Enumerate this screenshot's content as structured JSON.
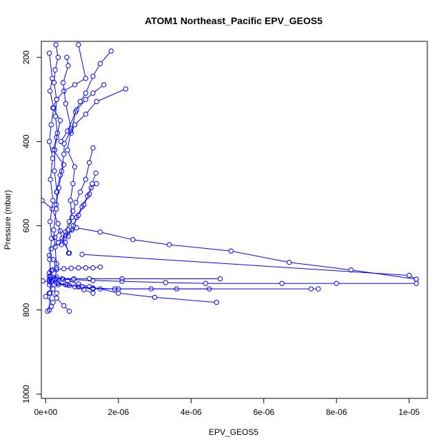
{
  "chart_data": {
    "type": "line",
    "title": "ATOM1 Northeast_Pacific EPV_GEOS5",
    "xlabel": "EPV_GEOS5",
    "ylabel": "Pressure (mbar)",
    "xlim": [
      -1.2e-07,
      1.05e-05
    ],
    "ylim": [
      1010,
      162
    ],
    "y_axis_reversed": true,
    "grid": false,
    "x_ticks": [
      {
        "value": 0,
        "label": "0e+00"
      },
      {
        "value": 2e-06,
        "label": "2e-06"
      },
      {
        "value": 4e-06,
        "label": "4e-06"
      },
      {
        "value": 6e-06,
        "label": "6e-06"
      },
      {
        "value": 8e-06,
        "label": "8e-06"
      },
      {
        "value": 1e-05,
        "label": "1e-05"
      }
    ],
    "y_ticks": [
      {
        "value": 200,
        "label": "200"
      },
      {
        "value": 400,
        "label": "400"
      },
      {
        "value": 600,
        "label": "600"
      },
      {
        "value": 800,
        "label": "800"
      },
      {
        "value": 1000,
        "label": "1000"
      }
    ],
    "colors": {
      "series": "#0000ff",
      "axis": "#000000"
    },
    "series": [
      {
        "x": [
          2.8e-07,
          3.4e-07,
          2.6e-07,
          2.3e-07,
          3e-07,
          2.7e-07,
          3.2e-07,
          2.5e-07,
          2.4e-07,
          3.1e-07,
          2.9e-07,
          2.2e-07,
          2.6e-07,
          3e-07,
          2.4e-07
        ],
        "y": [
          170,
          200,
          230,
          260,
          300,
          340,
          380,
          420,
          470,
          520,
          560,
          610,
          650,
          700,
          740
        ]
      },
      {
        "x": [
          1e-07,
          1.8e-07,
          1.2e-07,
          2.2e-07,
          1.5e-07,
          1e-07,
          1.9e-07,
          1.3e-07,
          2e-07,
          1.2e-07,
          1.6e-07,
          1.1e-07,
          1.4e-07,
          1.2e-07,
          1e-07
        ],
        "y": [
          190,
          250,
          280,
          320,
          360,
          400,
          440,
          490,
          540,
          590,
          630,
          680,
          720,
          760,
          800
        ]
      },
      {
        "x": [
          5.8e-07,
          6.2e-07,
          4.8e-07,
          5.5e-07,
          7e-07,
          6e-07,
          8e-07,
          7.5e-07,
          6.8e-07,
          7.2e-07,
          6.1e-07,
          5.4e-07,
          6.3e-07
        ],
        "y": [
          200,
          220,
          260,
          310,
          370,
          420,
          460,
          500,
          540,
          580,
          610,
          640,
          665
        ]
      },
      {
        "x": [
          2.2e-06,
          1.4e-06,
          1.1e-06,
          8e-07,
          6.8e-07,
          5.1e-07,
          5e-07,
          4.4e-07,
          3.6e-07,
          2.9e-07
        ],
        "y": [
          275,
          305,
          335,
          360,
          375,
          405,
          430,
          470,
          510,
          550
        ]
      },
      {
        "x": [
          1.8e-06,
          1.5e-06,
          1.3e-06,
          1.1e-06,
          9.5e-07,
          8.2e-07,
          7e-07
        ],
        "y": [
          185,
          215,
          245,
          285,
          305,
          330,
          380
        ]
      },
      {
        "x": [
          1.6e-06,
          1.3e-06,
          1.1e-06,
          8.5e-07,
          6e-07,
          4.2e-07
        ],
        "y": [
          265,
          285,
          300,
          325,
          375,
          400
        ]
      },
      {
        "x": [
          1.3e-06,
          1.2e-06,
          1.1e-06,
          9.5e-07,
          8.3e-07,
          7.5e-07,
          6.5e-07,
          5.4e-07,
          4.3e-07
        ],
        "y": [
          415,
          450,
          490,
          520,
          545,
          565,
          590,
          615,
          645
        ]
      },
      {
        "x": [
          1.38e-06,
          1.28e-06,
          1.2e-06,
          1.05e-06,
          9e-07,
          7.6e-07,
          6.2e-07
        ],
        "y": [
          475,
          500,
          525,
          550,
          575,
          600,
          625
        ]
      },
      {
        "x": [
          1.4e-06,
          1.25e-06,
          1.15e-06,
          1e-06,
          8.5e-07,
          7.2e-07
        ],
        "y": [
          500,
          510,
          530,
          555,
          580,
          610
        ]
      },
      {
        "x": [
          -1e-07,
          1.8e-07,
          3.4e-07,
          4.5e-07,
          6.5e-07
        ],
        "y": [
          540,
          560,
          595,
          630,
          665
        ]
      },
      {
        "x": [
          1e-06,
          1e-05,
          1.02e-05,
          8.4e-06,
          6.7e-06,
          5.1e-06,
          3.4e-06,
          2.4e-06,
          1.5e-06,
          8.5e-07,
          5.5e-07,
          3.5e-07
        ],
        "y": [
          668,
          718,
          727,
          705,
          687,
          660,
          645,
          633,
          615,
          605,
          622,
          640
        ]
      },
      {
        "x": [
          4.7e-06,
          3e-06,
          2e-06,
          1.5e-06,
          1.2e-06,
          9e-07,
          6e-07,
          3e-07,
          1e-07
        ],
        "y": [
          782,
          770,
          760,
          750,
          745,
          738,
          730,
          722,
          712
        ]
      },
      {
        "x": [
          4.5e-06,
          2e-06,
          1.3e-06,
          9e-07,
          6e-07,
          3.5e-07,
          1e-07,
          -8e-08
        ],
        "y": [
          750,
          750,
          750,
          745,
          740,
          736,
          733,
          731
        ]
      },
      {
        "x": [
          1.02e-05,
          8e-06,
          6.5e-06,
          4.4e-06,
          3.3e-06,
          2.1e-06,
          1.3e-06,
          7.5e-07,
          4.8e-07,
          2.8e-07,
          1.3e-07
        ],
        "y": [
          737,
          737,
          737,
          737,
          735,
          732,
          730,
          728,
          727,
          726,
          725
        ]
      },
      {
        "x": [
          4.8e-06,
          2.1e-06,
          1.2e-06,
          7.8e-07,
          4.5e-07,
          2.5e-07,
          1e-07
        ],
        "y": [
          726,
          726,
          726,
          726,
          726,
          727,
          728
        ]
      },
      {
        "x": [
          7.5e-06,
          7.3e-06,
          3.6e-06,
          2.9e-06,
          1.9e-06,
          1.3e-06,
          1e-06,
          6.5e-07,
          3.5e-07
        ],
        "y": [
          750,
          750,
          750,
          750,
          750,
          748,
          745,
          742,
          740
        ]
      },
      {
        "x": [
          1.5e-06,
          1.3e-06,
          1.1e-06,
          9e-07,
          7e-07,
          5e-07,
          3e-07,
          1.5e-07
        ],
        "y": [
          698,
          700,
          700,
          700,
          701,
          702,
          704,
          706
        ]
      },
      {
        "x": [
          1.3e-06,
          1.05e-06,
          8e-07,
          5.5e-07,
          3e-07,
          1.5e-07
        ],
        "y": [
          760,
          752,
          745,
          740,
          736,
          733
        ]
      },
      {
        "x": [
          6.5e-07,
          5e-07,
          3e-07,
          1e-07,
          0,
          2e-07,
          1.5e-07,
          5e-08
        ],
        "y": [
          803,
          790,
          772,
          760,
          768,
          782,
          792,
          803
        ]
      },
      {
        "x": [
          3e-07,
          2e-07,
          1e-07,
          1e-07,
          2e-07,
          3e-07,
          2e-07,
          1e-07,
          1.5e-07,
          3.5e-07,
          2.5e-07,
          4e-07
        ],
        "y": [
          760,
          750,
          740,
          720,
          705,
          690,
          680,
          670,
          655,
          640,
          628,
          612
        ]
      },
      {
        "x": [
          9e-07,
          1.1e-06,
          8e-07,
          5e-07,
          3e-07,
          2e-07,
          4e-07,
          3e-07,
          2e-07,
          5e-07,
          4e-07,
          3e-07
        ],
        "y": [
          170,
          250,
          265,
          280,
          300,
          320,
          350,
          390,
          420,
          455,
          480,
          520
        ]
      }
    ]
  }
}
